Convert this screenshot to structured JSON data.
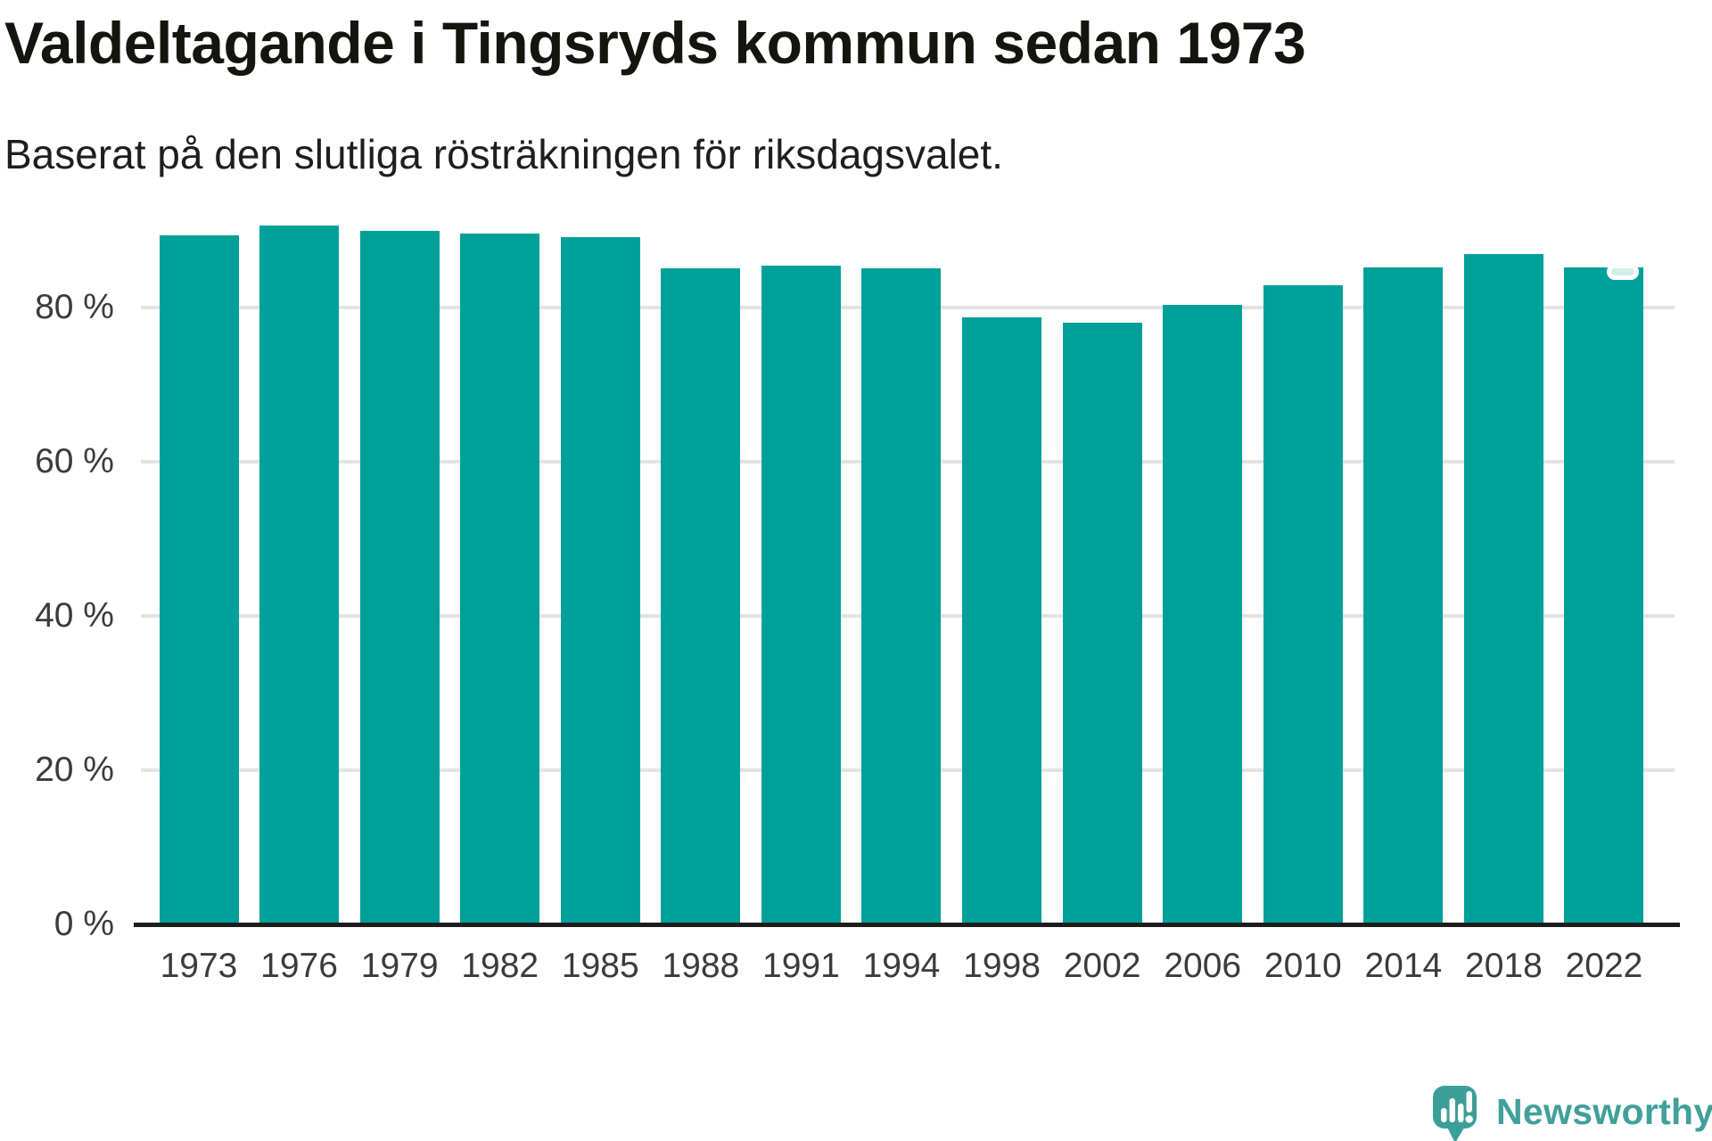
{
  "page": {
    "background": "#ffffff"
  },
  "header": {
    "title": "Valdeltagande i Tingsryds kommun sedan 1973",
    "subtitle": "Baserat på den slutliga rösträkningen för riksdagsvalet."
  },
  "chart_data": {
    "type": "bar",
    "title": "Valdeltagande i Tingsryds kommun sedan 1973",
    "subtitle": "Baserat på den slutliga rösträkningen för riksdagsvalet.",
    "categories": [
      "1973",
      "1976",
      "1979",
      "1982",
      "1985",
      "1988",
      "1991",
      "1994",
      "1998",
      "2002",
      "2006",
      "2010",
      "2014",
      "2018",
      "2022"
    ],
    "values": [
      89.3,
      90.6,
      89.9,
      89.5,
      89.1,
      85.0,
      85.4,
      85.0,
      78.7,
      78.0,
      80.3,
      82.8,
      85.2,
      86.9,
      85.2
    ],
    "unit": "%",
    "xlabel": "",
    "ylabel": "",
    "ylim": [
      0,
      100
    ],
    "yticks": [
      0,
      20,
      40,
      60,
      80
    ],
    "ytick_format": "{v} %",
    "grid": "horizontal",
    "legend": "none",
    "bar_color": "#00A09A",
    "gridline_color": "#E3E3E3",
    "axis_line_color": "#1D1D1D",
    "label_color": "#3B3B3B",
    "latest_bar_marker": {
      "on_category": "2022",
      "shape": "rounded-pill",
      "fill": "#D5EDE9",
      "border_color": "#FFFFFF"
    }
  },
  "footer": {
    "brand_name": "Newsworthy",
    "brand_text_color": "#41A09A",
    "brand_icon_color": "#3C9E98",
    "brand_icon": "newsworthy-speech-bubble-chart-icon"
  }
}
